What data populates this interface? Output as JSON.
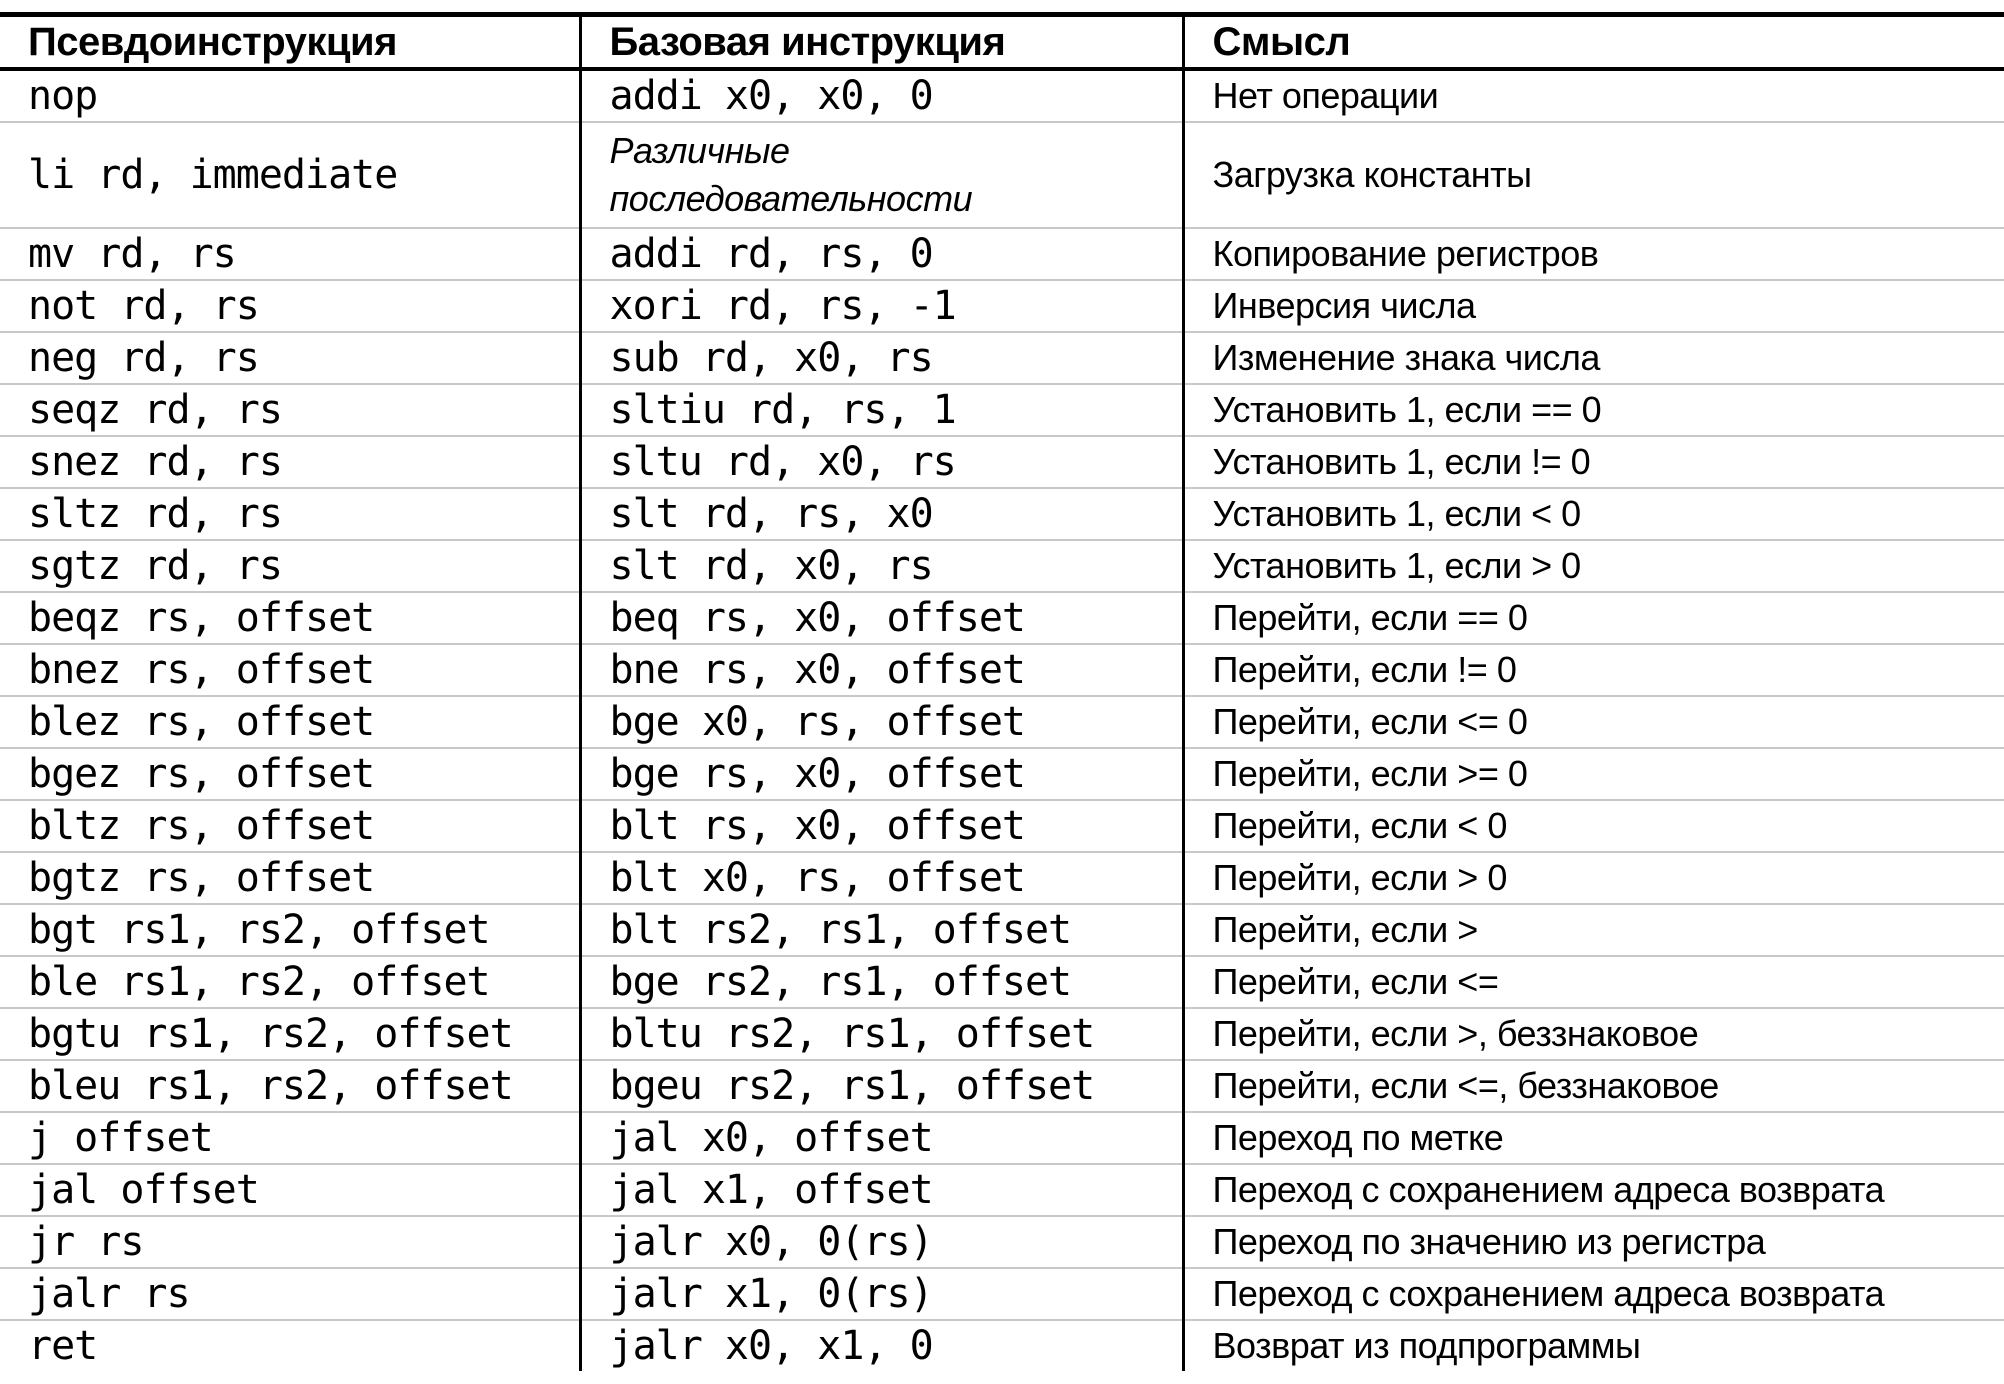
{
  "colors": {
    "text": "#000000",
    "heavy_rule": "#000000",
    "row_separator": "#c8c8c8",
    "background": "#ffffff"
  },
  "table": {
    "headers": [
      "Псевдоинструкция",
      "Базовая инструкция",
      "Смысл"
    ],
    "rows": [
      {
        "pseudo": "nop",
        "base": "addi x0, x0, 0",
        "meaning": "Нет операции"
      },
      {
        "pseudo": "li rd, immediate",
        "base": "Различные\nпоследовательности",
        "base_italic": true,
        "meaning": "Загрузка константы"
      },
      {
        "pseudo": "mv rd, rs",
        "base": "addi rd, rs, 0",
        "meaning": "Копирование регистров"
      },
      {
        "pseudo": "not rd, rs",
        "base": "xori rd, rs, -1",
        "meaning": "Инверсия числа"
      },
      {
        "pseudo": "neg rd, rs",
        "base": "sub rd, x0, rs",
        "meaning": "Изменение знака числа"
      },
      {
        "pseudo": "seqz rd, rs",
        "base": "sltiu rd, rs, 1",
        "meaning": "Установить 1, если == 0"
      },
      {
        "pseudo": "snez rd, rs",
        "base": "sltu rd, x0, rs",
        "meaning": "Установить 1, если != 0"
      },
      {
        "pseudo": "sltz rd, rs",
        "base": "slt rd, rs, x0",
        "meaning": "Установить 1, если < 0"
      },
      {
        "pseudo": "sgtz rd, rs",
        "base": "slt rd, x0, rs",
        "meaning": "Установить 1, если > 0"
      },
      {
        "pseudo": "beqz rs, offset",
        "base": "beq rs, x0, offset",
        "meaning": "Перейти, если == 0"
      },
      {
        "pseudo": "bnez rs, offset",
        "base": "bne rs, x0, offset",
        "meaning": "Перейти, если != 0"
      },
      {
        "pseudo": "blez rs, offset",
        "base": "bge x0, rs, offset",
        "meaning": "Перейти, если <= 0"
      },
      {
        "pseudo": "bgez rs, offset",
        "base": "bge rs, x0, offset",
        "meaning": "Перейти, если >= 0"
      },
      {
        "pseudo": "bltz rs, offset",
        "base": "blt rs, x0, offset",
        "meaning": "Перейти, если < 0"
      },
      {
        "pseudo": "bgtz rs, offset",
        "base": "blt x0, rs, offset",
        "meaning": "Перейти, если > 0"
      },
      {
        "pseudo": "bgt rs1, rs2, offset",
        "base": "blt rs2, rs1, offset",
        "meaning": "Перейти, если >"
      },
      {
        "pseudo": "ble rs1, rs2, offset",
        "base": "bge rs2, rs1, offset",
        "meaning": "Перейти, если <="
      },
      {
        "pseudo": "bgtu rs1, rs2, offset",
        "base": "bltu rs2, rs1, offset",
        "meaning": "Перейти, если >, беззнаковое"
      },
      {
        "pseudo": "bleu rs1, rs2, offset",
        "base": "bgeu rs2, rs1, offset",
        "meaning": "Перейти, если <=, беззнаковое"
      },
      {
        "pseudo": "j offset",
        "base": "jal x0, offset",
        "meaning": "Переход по метке"
      },
      {
        "pseudo": "jal offset",
        "base": "jal x1, offset",
        "meaning": "Переход с сохранением адреса возврата"
      },
      {
        "pseudo": "jr rs",
        "base": "jalr x0, 0(rs)",
        "meaning": "Переход по значению из регистра"
      },
      {
        "pseudo": "jalr rs",
        "base": "jalr x1, 0(rs)",
        "meaning": "Переход с сохранением адреса возврата"
      },
      {
        "pseudo": "ret",
        "base": "jalr x0, x1, 0",
        "meaning": "Возврат из подпрограммы"
      }
    ]
  }
}
